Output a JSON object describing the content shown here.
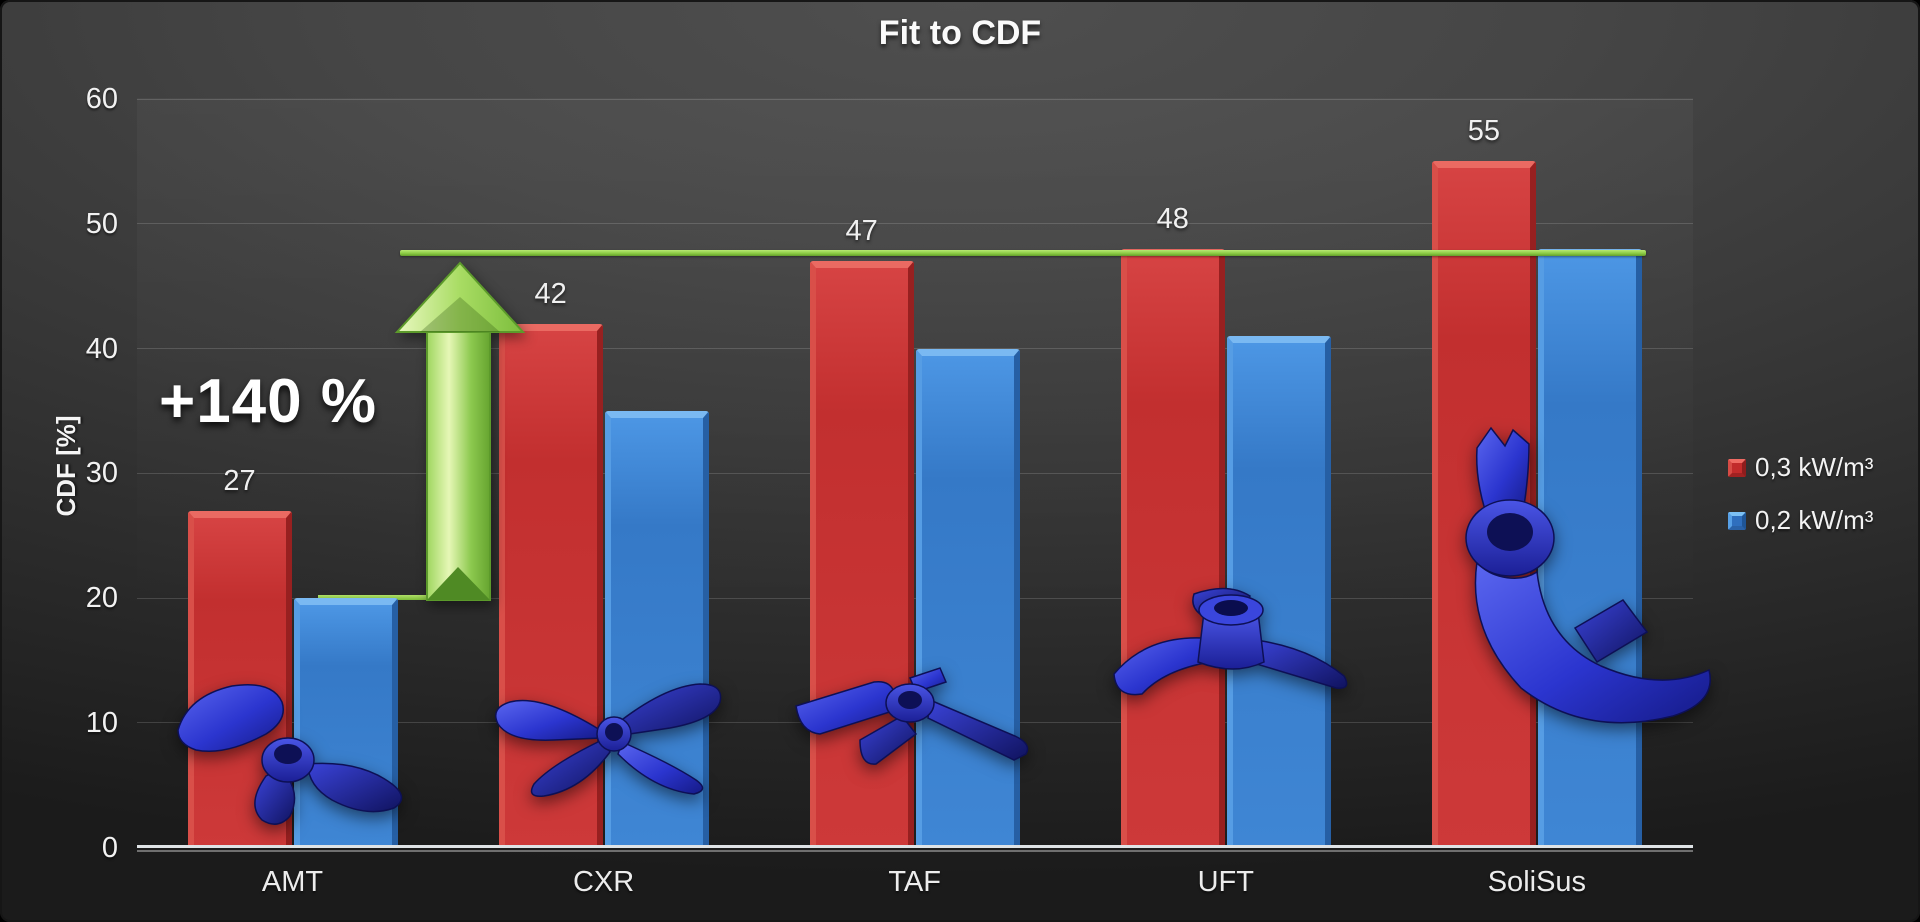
{
  "chart_data": {
    "type": "bar",
    "title": "Fit to CDF",
    "categories": [
      "AMT",
      "CXR",
      "TAF",
      "UFT",
      "SoliSus"
    ],
    "series": [
      {
        "name": "0,3 kW/m³",
        "color": "#cd3939",
        "values": [
          27,
          42,
          47,
          48,
          55
        ]
      },
      {
        "name": "0,2 kW/m³",
        "color": "#3f86d4",
        "values": [
          20,
          35,
          40,
          41,
          48
        ]
      }
    ],
    "bar_labels": [
      "27",
      "42",
      "47",
      "48",
      "55"
    ],
    "ylabel": "CDF [%]",
    "xlabel": "",
    "ylim": [
      0,
      60
    ],
    "yticks": [
      0,
      10,
      20,
      30,
      40,
      50,
      60
    ],
    "grid": true,
    "legend_position": "right",
    "annotations": [
      {
        "type": "arrow",
        "label": "+140 %",
        "from_value": 20,
        "to_value": 48,
        "color": "#8fd14f"
      },
      {
        "type": "reference_line",
        "value": 48,
        "color": "#7fc93e"
      }
    ]
  },
  "icons": {
    "impellers": [
      "amt-propeller-icon",
      "cxr-propeller-icon",
      "taf-propeller-icon",
      "uft-propeller-icon",
      "solisus-impeller-icon"
    ],
    "arrow": "increase-arrow-icon"
  },
  "colors": {
    "background_top": "#4f4f4f",
    "background_bottom": "#1b1b1b",
    "red_series": "#cd3939",
    "blue_series": "#3f86d4",
    "green_accent": "#8fd14f",
    "text": "#f2f2f2"
  }
}
